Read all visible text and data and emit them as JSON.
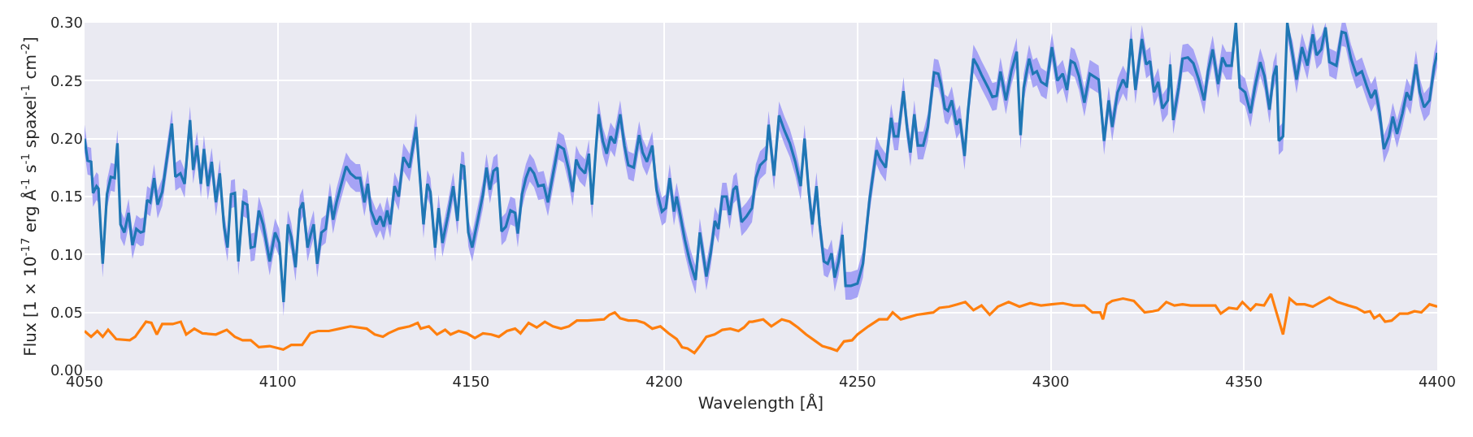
{
  "chart_data": {
    "type": "line",
    "xlabel": "Wavelength [Å]",
    "ylabel": "Flux [1 × 10$^{-17}$ erg Å$^{-1}$ s$^{-1}$ spaxel$^{-1}$ cm$^{-2}$]",
    "xlim": [
      4050,
      4400
    ],
    "xticks": [
      4050,
      4100,
      4150,
      4200,
      4250,
      4300,
      4350,
      4400
    ],
    "ylim": [
      0,
      0.3
    ],
    "yticks": [
      {
        "value": 0,
        "label": "0.00"
      },
      {
        "value": 0.05,
        "label": "0.05"
      },
      {
        "value": 0.1,
        "label": "0.10"
      },
      {
        "value": 0.15,
        "label": "0.15"
      },
      {
        "value": 0.2,
        "label": "0.20"
      },
      {
        "value": 0.25,
        "label": "0.25"
      },
      {
        "value": 0.3,
        "label": "0.30"
      }
    ],
    "grid": true,
    "marker": "none",
    "line_style": "solid",
    "series": [
      {
        "color": "#1f77b4",
        "x": [
          4050.0,
          4050.8,
          4051.7,
          4052.2,
          4053.1,
          4053.6,
          4054.7,
          4055.8,
          4056.8,
          4057.8,
          4058.5,
          4059.3,
          4060.3,
          4061.4,
          4062.4,
          4063.4,
          4064.5,
          4065.3,
          4066.2,
          4067.0,
          4068.0,
          4068.9,
          4070.1,
          4071.2,
          4072.6,
          4073.5,
          4074.8,
          4075.9,
          4077.3,
          4078.1,
          4079.1,
          4080.1,
          4080.9,
          4081.9,
          4082.9,
          4084.0,
          4085.0,
          4086.1,
          4087.0,
          4087.9,
          4088.9,
          4089.8,
          4091.0,
          4092.1,
          4093.0,
          4094.0,
          4095.1,
          4096.2,
          4097.9,
          4099.3,
          4100.4,
          4101.5,
          4102.6,
          4103.5,
          4104.6,
          4105.7,
          4106.5,
          4107.7,
          4108.5,
          4109.3,
          4110.2,
          4111.3,
          4112.4,
          4113.5,
          4114.3,
          4115.2,
          4116.3,
          4117.7,
          4118.8,
          4120.2,
          4121.3,
          4122.4,
          4123.3,
          4124.1,
          4125.5,
          4126.5,
          4127.4,
          4128.3,
          4129.1,
          4130.2,
          4131.3,
          4132.5,
          4134.1,
          4135.8,
          4137.7,
          4138.7,
          4139.5,
          4140.7,
          4141.6,
          4142.6,
          4144.0,
          4145.4,
          4146.5,
          4147.5,
          4148.2,
          4149.3,
          4150.3,
          4151.7,
          4153.1,
          4154.0,
          4154.9,
          4155.8,
          4156.8,
          4157.9,
          4159.0,
          4160.2,
          4161.4,
          4162.1,
          4163.2,
          4164.2,
          4165.2,
          4166.3,
          4167.4,
          4168.8,
          4169.9,
          4171.2,
          4172.6,
          4174.0,
          4175.3,
          4176.3,
          4177.2,
          4178.1,
          4179.5,
          4180.5,
          4181.3,
          4182.3,
          4183.0,
          4184.1,
          4185.1,
          4186.1,
          4187.2,
          4188.6,
          4189.7,
          4190.7,
          4192.1,
          4193.5,
          4194.4,
          4195.5,
          4196.9,
          4198.0,
          4199.4,
          4200.4,
          4201.4,
          4202.5,
          4203.2,
          4204.2,
          4205.3,
          4206.7,
          4208.1,
          4209.2,
          4210.2,
          4210.9,
          4212.0,
          4213.1,
          4214.0,
          4215.0,
          4216.1,
          4216.9,
          4217.9,
          4218.7,
          4220.0,
          4221.3,
          4222.7,
          4223.7,
          4224.8,
          4226.3,
          4227.0,
          4228.4,
          4229.7,
          4231.1,
          4232.5,
          4233.9,
          4235.3,
          4236.3,
          4237.4,
          4238.3,
          4239.4,
          4240.2,
          4241.3,
          4242.3,
          4243.3,
          4244.1,
          4245.1,
          4246.1,
          4246.9,
          4248.3,
          4250.0,
          4251.4,
          4253.1,
          4254.9,
          4255.9,
          4257.3,
          4258.7,
          4259.5,
          4260.5,
          4261.9,
          4262.8,
          4263.7,
          4264.7,
          4265.6,
          4267.0,
          4268.2,
          4269.8,
          4270.9,
          4271.6,
          4272.6,
          4273.4,
          4274.4,
          4275.6,
          4276.5,
          4277.7,
          4278.6,
          4280.0,
          4281.0,
          4282.1,
          4283.8,
          4284.9,
          4286.0,
          4287.0,
          4288.4,
          4289.8,
          4291.2,
          4292.2,
          4293.0,
          4294.4,
          4295.4,
          4296.4,
          4297.5,
          4298.9,
          4300.3,
          4301.7,
          4303.1,
          4304.2,
          4305.2,
          4306.2,
          4307.3,
          4308.7,
          4310.1,
          4311.5,
          4312.4,
          4313.8,
          4315.0,
          4315.9,
          4317.3,
          4318.7,
          4319.7,
          4320.8,
          4321.9,
          4323.6,
          4324.7,
          4325.7,
          4326.7,
          4327.8,
          4328.9,
          4330.3,
          4330.9,
          4331.7,
          4333.1,
          4334.1,
          4335.5,
          4336.9,
          4338.3,
          4339.7,
          4340.7,
          4341.9,
          4343.3,
          4344.4,
          4345.4,
          4346.8,
          4347.9,
          4348.9,
          4350.3,
          4351.7,
          4352.8,
          4354.2,
          4355.3,
          4356.6,
          4357.6,
          4358.4,
          4359.0,
          4360.1,
          4361.2,
          4362.6,
          4363.6,
          4365.0,
          4366.4,
          4367.8,
          4368.8,
          4370.0,
          4371.1,
          4372.1,
          4373.9,
          4375.3,
          4376.3,
          4377.7,
          4379.1,
          4380.5,
          4381.9,
          4382.9,
          4384.0,
          4385.1,
          4386.2,
          4387.5,
          4388.5,
          4389.6,
          4391.0,
          4392.1,
          4393.1,
          4394.5,
          4395.5,
          4396.6,
          4398.0,
          4399.2,
          4400.0
        ],
        "values": [
          0.2,
          0.181,
          0.18,
          0.153,
          0.159,
          0.157,
          0.092,
          0.152,
          0.167,
          0.166,
          0.196,
          0.126,
          0.119,
          0.136,
          0.108,
          0.122,
          0.119,
          0.12,
          0.147,
          0.145,
          0.166,
          0.143,
          0.154,
          0.18,
          0.213,
          0.167,
          0.17,
          0.161,
          0.216,
          0.173,
          0.194,
          0.161,
          0.191,
          0.159,
          0.18,
          0.145,
          0.17,
          0.124,
          0.106,
          0.152,
          0.153,
          0.094,
          0.145,
          0.143,
          0.106,
          0.107,
          0.138,
          0.126,
          0.094,
          0.119,
          0.11,
          0.059,
          0.126,
          0.115,
          0.089,
          0.139,
          0.145,
          0.106,
          0.117,
          0.126,
          0.092,
          0.119,
          0.122,
          0.15,
          0.13,
          0.145,
          0.159,
          0.176,
          0.17,
          0.166,
          0.166,
          0.145,
          0.161,
          0.138,
          0.126,
          0.133,
          0.124,
          0.138,
          0.126,
          0.159,
          0.15,
          0.184,
          0.175,
          0.21,
          0.126,
          0.161,
          0.154,
          0.106,
          0.14,
          0.11,
          0.133,
          0.159,
          0.129,
          0.177,
          0.176,
          0.119,
          0.106,
          0.129,
          0.152,
          0.175,
          0.156,
          0.172,
          0.175,
          0.12,
          0.124,
          0.138,
          0.136,
          0.118,
          0.152,
          0.166,
          0.175,
          0.17,
          0.159,
          0.16,
          0.145,
          0.169,
          0.194,
          0.191,
          0.173,
          0.154,
          0.182,
          0.175,
          0.17,
          0.187,
          0.143,
          0.191,
          0.221,
          0.198,
          0.187,
          0.202,
          0.196,
          0.221,
          0.194,
          0.177,
          0.175,
          0.203,
          0.188,
          0.18,
          0.194,
          0.156,
          0.137,
          0.14,
          0.166,
          0.137,
          0.15,
          0.133,
          0.113,
          0.093,
          0.078,
          0.119,
          0.097,
          0.081,
          0.101,
          0.129,
          0.122,
          0.15,
          0.15,
          0.134,
          0.156,
          0.159,
          0.128,
          0.133,
          0.14,
          0.166,
          0.177,
          0.182,
          0.212,
          0.168,
          0.22,
          0.207,
          0.196,
          0.18,
          0.159,
          0.2,
          0.154,
          0.126,
          0.159,
          0.126,
          0.094,
          0.092,
          0.101,
          0.08,
          0.094,
          0.117,
          0.073,
          0.073,
          0.075,
          0.092,
          0.147,
          0.19,
          0.182,
          0.175,
          0.218,
          0.202,
          0.202,
          0.241,
          0.21,
          0.188,
          0.221,
          0.194,
          0.194,
          0.21,
          0.257,
          0.256,
          0.247,
          0.226,
          0.224,
          0.233,
          0.212,
          0.217,
          0.185,
          0.224,
          0.269,
          0.263,
          0.255,
          0.244,
          0.236,
          0.237,
          0.258,
          0.233,
          0.258,
          0.275,
          0.203,
          0.244,
          0.269,
          0.256,
          0.258,
          0.249,
          0.246,
          0.279,
          0.25,
          0.256,
          0.242,
          0.267,
          0.265,
          0.254,
          0.231,
          0.256,
          0.253,
          0.251,
          0.198,
          0.233,
          0.21,
          0.24,
          0.251,
          0.244,
          0.286,
          0.242,
          0.286,
          0.264,
          0.267,
          0.24,
          0.249,
          0.226,
          0.233,
          0.264,
          0.216,
          0.244,
          0.269,
          0.27,
          0.265,
          0.251,
          0.233,
          0.258,
          0.277,
          0.247,
          0.27,
          0.263,
          0.263,
          0.3,
          0.244,
          0.24,
          0.222,
          0.244,
          0.266,
          0.254,
          0.225,
          0.254,
          0.263,
          0.198,
          0.202,
          0.3,
          0.272,
          0.251,
          0.279,
          0.263,
          0.29,
          0.272,
          0.277,
          0.296,
          0.266,
          0.263,
          0.292,
          0.291,
          0.269,
          0.255,
          0.258,
          0.244,
          0.235,
          0.242,
          0.222,
          0.191,
          0.202,
          0.219,
          0.204,
          0.222,
          0.24,
          0.233,
          0.264,
          0.24,
          0.227,
          0.233,
          0.262,
          0.274
        ],
        "lower": [
          0.188,
          0.169,
          0.168,
          0.141,
          0.147,
          0.145,
          0.08,
          0.14,
          0.155,
          0.154,
          0.184,
          0.114,
          0.107,
          0.124,
          0.096,
          0.11,
          0.107,
          0.108,
          0.135,
          0.133,
          0.154,
          0.131,
          0.142,
          0.168,
          0.201,
          0.155,
          0.158,
          0.149,
          0.204,
          0.161,
          0.182,
          0.149,
          0.179,
          0.147,
          0.168,
          0.133,
          0.158,
          0.112,
          0.094,
          0.14,
          0.141,
          0.082,
          0.133,
          0.131,
          0.094,
          0.095,
          0.126,
          0.114,
          0.082,
          0.107,
          0.098,
          0.047,
          0.114,
          0.103,
          0.077,
          0.127,
          0.133,
          0.094,
          0.105,
          0.114,
          0.08,
          0.107,
          0.11,
          0.138,
          0.118,
          0.133,
          0.147,
          0.164,
          0.158,
          0.154,
          0.154,
          0.133,
          0.149,
          0.126,
          0.114,
          0.121,
          0.112,
          0.126,
          0.114,
          0.147,
          0.138,
          0.172,
          0.163,
          0.198,
          0.114,
          0.149,
          0.142,
          0.094,
          0.128,
          0.098,
          0.121,
          0.147,
          0.117,
          0.165,
          0.164,
          0.107,
          0.094,
          0.117,
          0.14,
          0.163,
          0.144,
          0.16,
          0.163,
          0.108,
          0.112,
          0.126,
          0.124,
          0.106,
          0.14,
          0.154,
          0.163,
          0.158,
          0.147,
          0.148,
          0.133,
          0.157,
          0.182,
          0.179,
          0.161,
          0.142,
          0.17,
          0.163,
          0.158,
          0.175,
          0.131,
          0.179,
          0.209,
          0.186,
          0.175,
          0.19,
          0.184,
          0.209,
          0.182,
          0.165,
          0.163,
          0.191,
          0.176,
          0.168,
          0.182,
          0.144,
          0.125,
          0.128,
          0.154,
          0.125,
          0.138,
          0.121,
          0.101,
          0.081,
          0.066,
          0.107,
          0.085,
          0.069,
          0.089,
          0.117,
          0.11,
          0.138,
          0.138,
          0.122,
          0.144,
          0.147,
          0.116,
          0.121,
          0.128,
          0.154,
          0.165,
          0.17,
          0.2,
          0.156,
          0.208,
          0.195,
          0.184,
          0.168,
          0.147,
          0.188,
          0.142,
          0.114,
          0.147,
          0.114,
          0.082,
          0.08,
          0.089,
          0.068,
          0.082,
          0.105,
          0.061,
          0.061,
          0.063,
          0.08,
          0.135,
          0.178,
          0.17,
          0.163,
          0.206,
          0.19,
          0.19,
          0.229,
          0.198,
          0.176,
          0.209,
          0.182,
          0.182,
          0.198,
          0.245,
          0.244,
          0.235,
          0.214,
          0.212,
          0.221,
          0.2,
          0.205,
          0.173,
          0.212,
          0.257,
          0.251,
          0.243,
          0.232,
          0.224,
          0.225,
          0.246,
          0.221,
          0.246,
          0.263,
          0.191,
          0.232,
          0.257,
          0.244,
          0.246,
          0.237,
          0.234,
          0.267,
          0.238,
          0.244,
          0.23,
          0.255,
          0.253,
          0.242,
          0.219,
          0.244,
          0.241,
          0.239,
          0.186,
          0.221,
          0.198,
          0.228,
          0.239,
          0.232,
          0.274,
          0.23,
          0.274,
          0.252,
          0.255,
          0.228,
          0.237,
          0.214,
          0.221,
          0.252,
          0.204,
          0.232,
          0.257,
          0.258,
          0.253,
          0.239,
          0.221,
          0.246,
          0.265,
          0.235,
          0.258,
          0.251,
          0.251,
          0.288,
          0.232,
          0.228,
          0.21,
          0.232,
          0.254,
          0.242,
          0.213,
          0.242,
          0.251,
          0.186,
          0.19,
          0.288,
          0.26,
          0.239,
          0.267,
          0.251,
          0.278,
          0.26,
          0.265,
          0.284,
          0.254,
          0.251,
          0.28,
          0.279,
          0.257,
          0.243,
          0.246,
          0.232,
          0.223,
          0.23,
          0.21,
          0.179,
          0.19,
          0.207,
          0.192,
          0.21,
          0.228,
          0.221,
          0.252,
          0.228,
          0.215,
          0.221,
          0.25,
          0.262
        ],
        "upper": [
          0.212,
          0.193,
          0.192,
          0.165,
          0.171,
          0.169,
          0.104,
          0.164,
          0.179,
          0.178,
          0.208,
          0.138,
          0.131,
          0.148,
          0.12,
          0.134,
          0.131,
          0.132,
          0.159,
          0.157,
          0.178,
          0.155,
          0.166,
          0.192,
          0.225,
          0.179,
          0.182,
          0.173,
          0.228,
          0.185,
          0.206,
          0.173,
          0.203,
          0.171,
          0.192,
          0.157,
          0.182,
          0.136,
          0.118,
          0.164,
          0.165,
          0.106,
          0.157,
          0.155,
          0.118,
          0.119,
          0.15,
          0.138,
          0.106,
          0.131,
          0.122,
          0.071,
          0.138,
          0.127,
          0.101,
          0.151,
          0.157,
          0.118,
          0.129,
          0.138,
          0.104,
          0.131,
          0.134,
          0.162,
          0.142,
          0.157,
          0.171,
          0.188,
          0.182,
          0.178,
          0.178,
          0.157,
          0.173,
          0.15,
          0.138,
          0.145,
          0.136,
          0.15,
          0.138,
          0.171,
          0.162,
          0.196,
          0.187,
          0.222,
          0.138,
          0.173,
          0.166,
          0.118,
          0.152,
          0.122,
          0.145,
          0.171,
          0.141,
          0.189,
          0.188,
          0.131,
          0.118,
          0.141,
          0.164,
          0.187,
          0.168,
          0.184,
          0.187,
          0.132,
          0.136,
          0.15,
          0.148,
          0.13,
          0.164,
          0.178,
          0.187,
          0.182,
          0.171,
          0.172,
          0.157,
          0.181,
          0.206,
          0.203,
          0.185,
          0.166,
          0.194,
          0.187,
          0.182,
          0.199,
          0.155,
          0.203,
          0.233,
          0.21,
          0.199,
          0.214,
          0.208,
          0.233,
          0.206,
          0.189,
          0.187,
          0.215,
          0.2,
          0.192,
          0.206,
          0.168,
          0.149,
          0.152,
          0.178,
          0.149,
          0.162,
          0.145,
          0.125,
          0.105,
          0.09,
          0.131,
          0.109,
          0.093,
          0.113,
          0.141,
          0.134,
          0.162,
          0.162,
          0.146,
          0.168,
          0.171,
          0.14,
          0.145,
          0.152,
          0.178,
          0.189,
          0.194,
          0.224,
          0.18,
          0.232,
          0.219,
          0.208,
          0.192,
          0.171,
          0.212,
          0.166,
          0.138,
          0.171,
          0.138,
          0.106,
          0.104,
          0.113,
          0.092,
          0.106,
          0.129,
          0.085,
          0.085,
          0.087,
          0.104,
          0.159,
          0.202,
          0.194,
          0.187,
          0.23,
          0.214,
          0.214,
          0.253,
          0.222,
          0.2,
          0.233,
          0.206,
          0.206,
          0.222,
          0.269,
          0.268,
          0.259,
          0.238,
          0.236,
          0.245,
          0.224,
          0.229,
          0.197,
          0.236,
          0.281,
          0.275,
          0.267,
          0.256,
          0.248,
          0.249,
          0.27,
          0.245,
          0.27,
          0.287,
          0.215,
          0.256,
          0.281,
          0.268,
          0.27,
          0.261,
          0.258,
          0.291,
          0.262,
          0.268,
          0.254,
          0.279,
          0.277,
          0.266,
          0.243,
          0.268,
          0.265,
          0.263,
          0.21,
          0.245,
          0.222,
          0.252,
          0.263,
          0.256,
          0.298,
          0.254,
          0.298,
          0.276,
          0.279,
          0.252,
          0.261,
          0.238,
          0.245,
          0.276,
          0.228,
          0.256,
          0.281,
          0.282,
          0.277,
          0.263,
          0.245,
          0.27,
          0.289,
          0.259,
          0.282,
          0.275,
          0.275,
          0.3,
          0.256,
          0.252,
          0.234,
          0.256,
          0.278,
          0.266,
          0.237,
          0.266,
          0.275,
          0.21,
          0.214,
          0.3,
          0.284,
          0.263,
          0.291,
          0.275,
          0.3,
          0.284,
          0.289,
          0.3,
          0.278,
          0.275,
          0.3,
          0.3,
          0.281,
          0.267,
          0.27,
          0.256,
          0.247,
          0.254,
          0.234,
          0.203,
          0.214,
          0.231,
          0.216,
          0.234,
          0.252,
          0.245,
          0.276,
          0.252,
          0.239,
          0.245,
          0.274,
          0.286
        ]
      },
      {
        "color": "#ff7f0e",
        "x": [
          4050.0,
          4051.7,
          4053.3,
          4054.7,
          4056.1,
          4058.2,
          4061.7,
          4063.1,
          4065.9,
          4067.3,
          4068.7,
          4070.1,
          4072.8,
          4074.9,
          4076.3,
          4078.4,
          4080.5,
          4084.0,
          4086.8,
          4088.9,
          4090.9,
          4093.0,
          4095.1,
          4097.9,
          4101.4,
          4103.5,
          4106.3,
          4108.4,
          4110.4,
          4113.2,
          4116.0,
          4118.8,
          4123.0,
          4125.1,
          4127.2,
          4128.6,
          4131.3,
          4134.1,
          4136.2,
          4137.0,
          4139.1,
          4141.2,
          4143.3,
          4144.7,
          4146.8,
          4148.9,
          4151.0,
          4153.1,
          4155.2,
          4157.2,
          4159.3,
          4161.4,
          4162.8,
          4164.9,
          4167.0,
          4169.1,
          4171.2,
          4173.3,
          4175.3,
          4177.4,
          4180.2,
          4184.4,
          4185.8,
          4187.2,
          4188.6,
          4190.7,
          4192.8,
          4194.8,
          4196.9,
          4199.0,
          4201.1,
          4203.2,
          4204.6,
          4206.0,
          4207.8,
          4209.2,
          4210.9,
          4213.0,
          4215.0,
          4217.1,
          4219.2,
          4220.6,
          4222.0,
          4222.8,
          4225.6,
          4227.7,
          4230.4,
          4232.5,
          4234.6,
          4236.7,
          4238.8,
          4240.9,
          4243.0,
          4244.7,
          4246.5,
          4248.6,
          4250.0,
          4252.8,
          4255.6,
          4257.7,
          4259.1,
          4261.2,
          4263.3,
          4265.4,
          4267.5,
          4269.6,
          4271.2,
          4273.7,
          4275.8,
          4277.9,
          4280.0,
          4282.1,
          4284.2,
          4286.3,
          4289.1,
          4291.9,
          4294.7,
          4297.5,
          4300.3,
          4303.1,
          4305.9,
          4308.7,
          4310.8,
          4312.8,
          4313.5,
          4314.5,
          4315.9,
          4318.7,
          4321.5,
          4324.3,
          4326.4,
          4327.8,
          4329.9,
          4332.0,
          4334.1,
          4336.2,
          4338.3,
          4340.4,
          4342.6,
          4344.0,
          4346.1,
          4348.2,
          4349.6,
          4351.7,
          4353.1,
          4355.2,
          4357.0,
          4358.4,
          4360.1,
          4361.8,
          4363.6,
          4365.7,
          4367.8,
          4369.9,
          4372.1,
          4374.2,
          4377.0,
          4379.1,
          4381.2,
          4382.6,
          4383.7,
          4385.1,
          4386.5,
          4388.2,
          4390.3,
          4392.4,
          4394.1,
          4395.9,
          4398.0,
          4400.0
        ],
        "values": [
          0.034,
          0.029,
          0.034,
          0.029,
          0.035,
          0.027,
          0.026,
          0.029,
          0.042,
          0.041,
          0.031,
          0.04,
          0.04,
          0.042,
          0.031,
          0.036,
          0.032,
          0.031,
          0.035,
          0.029,
          0.026,
          0.026,
          0.02,
          0.021,
          0.018,
          0.022,
          0.022,
          0.032,
          0.034,
          0.034,
          0.036,
          0.038,
          0.036,
          0.031,
          0.029,
          0.032,
          0.036,
          0.038,
          0.041,
          0.036,
          0.038,
          0.031,
          0.035,
          0.031,
          0.034,
          0.032,
          0.028,
          0.032,
          0.031,
          0.029,
          0.034,
          0.036,
          0.032,
          0.041,
          0.037,
          0.042,
          0.038,
          0.036,
          0.038,
          0.043,
          0.043,
          0.044,
          0.048,
          0.05,
          0.045,
          0.043,
          0.043,
          0.041,
          0.036,
          0.038,
          0.032,
          0.027,
          0.02,
          0.019,
          0.015,
          0.021,
          0.029,
          0.031,
          0.035,
          0.036,
          0.034,
          0.037,
          0.042,
          0.042,
          0.044,
          0.038,
          0.044,
          0.042,
          0.037,
          0.031,
          0.026,
          0.021,
          0.019,
          0.017,
          0.025,
          0.026,
          0.031,
          0.038,
          0.044,
          0.044,
          0.05,
          0.044,
          0.046,
          0.048,
          0.049,
          0.05,
          0.054,
          0.055,
          0.057,
          0.059,
          0.052,
          0.056,
          0.048,
          0.055,
          0.059,
          0.055,
          0.058,
          0.056,
          0.057,
          0.058,
          0.056,
          0.056,
          0.05,
          0.05,
          0.044,
          0.057,
          0.06,
          0.062,
          0.06,
          0.05,
          0.051,
          0.052,
          0.059,
          0.056,
          0.057,
          0.056,
          0.056,
          0.056,
          0.056,
          0.049,
          0.054,
          0.053,
          0.059,
          0.052,
          0.057,
          0.056,
          0.066,
          0.05,
          0.031,
          0.062,
          0.057,
          0.057,
          0.055,
          0.059,
          0.063,
          0.059,
          0.056,
          0.054,
          0.05,
          0.051,
          0.045,
          0.048,
          0.042,
          0.043,
          0.049,
          0.049,
          0.051,
          0.05,
          0.057,
          0.055
        ]
      }
    ]
  }
}
